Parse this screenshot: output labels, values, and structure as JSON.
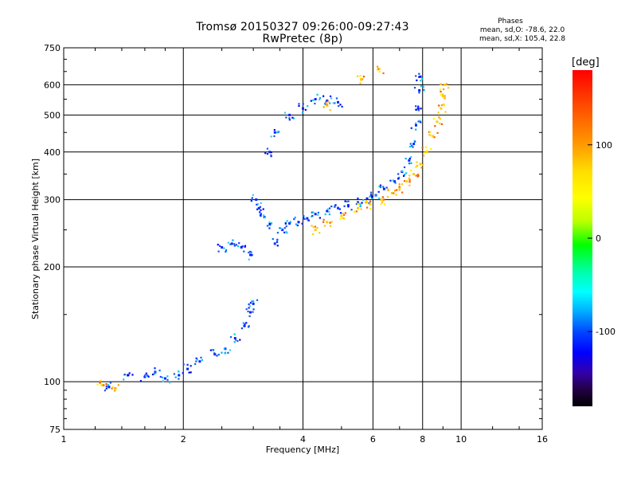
{
  "title": {
    "line1": "Tromsø 20150327 09:26:00-09:27:43",
    "line2": "RwPretec (8p)"
  },
  "phases": {
    "heading": "Phases",
    "line_o": "mean, sd,O: -78.6, 22.0",
    "line_x": "mean, sd,X: 105.4, 22.8"
  },
  "chart_data": {
    "type": "scatter",
    "xlabel": "Frequency [MHz]",
    "ylabel": "Stationary phase Virtual Height [km]",
    "x_scale": "log",
    "y_scale": "log",
    "xlim": [
      1,
      16
    ],
    "ylim": [
      75,
      750
    ],
    "x_ticks": [
      1,
      2,
      4,
      6,
      8,
      10,
      16
    ],
    "x_tick_labels": [
      "1",
      "2",
      "4",
      "6",
      "8",
      "10",
      "16"
    ],
    "y_ticks": [
      75,
      100,
      200,
      300,
      400,
      500,
      600,
      750
    ],
    "y_tick_labels": [
      "75",
      "100",
      "200",
      "300",
      "400",
      "500",
      "600",
      "750"
    ],
    "grid": true,
    "colorbar": {
      "label": "[deg]",
      "range": [
        -180,
        180
      ],
      "ticks": [
        100,
        0,
        -100
      ],
      "tick_labels": [
        "100",
        "0",
        "-100"
      ]
    },
    "series": [
      {
        "name": "O",
        "color_value": -78.6,
        "points": [
          [
            1.3,
            97
          ],
          [
            1.45,
            104
          ],
          [
            1.6,
            103
          ],
          [
            1.7,
            106
          ],
          [
            1.8,
            102
          ],
          [
            1.95,
            104
          ],
          [
            2.05,
            108
          ],
          [
            2.2,
            113
          ],
          [
            2.4,
            118
          ],
          [
            2.55,
            122
          ],
          [
            2.7,
            130
          ],
          [
            2.85,
            140
          ],
          [
            2.95,
            152
          ],
          [
            3.0,
            160
          ],
          [
            2.5,
            225
          ],
          [
            2.65,
            230
          ],
          [
            2.8,
            225
          ],
          [
            2.95,
            215
          ],
          [
            3.05,
            300
          ],
          [
            3.1,
            285
          ],
          [
            3.2,
            270
          ],
          [
            3.3,
            258
          ],
          [
            3.4,
            230
          ],
          [
            3.55,
            250
          ],
          [
            3.7,
            260
          ],
          [
            3.9,
            262
          ],
          [
            4.1,
            268
          ],
          [
            4.3,
            275
          ],
          [
            4.6,
            280
          ],
          [
            4.9,
            285
          ],
          [
            5.2,
            290
          ],
          [
            5.5,
            295
          ],
          [
            5.8,
            302
          ],
          [
            6.1,
            308
          ],
          [
            6.4,
            320
          ],
          [
            6.8,
            335
          ],
          [
            7.1,
            355
          ],
          [
            7.4,
            380
          ],
          [
            7.6,
            420
          ],
          [
            7.7,
            470
          ],
          [
            7.8,
            520
          ],
          [
            7.85,
            580
          ],
          [
            7.9,
            630
          ],
          [
            3.3,
            400
          ],
          [
            3.4,
            450
          ],
          [
            3.7,
            500
          ],
          [
            4.0,
            520
          ],
          [
            4.3,
            550
          ],
          [
            4.6,
            545
          ],
          [
            4.9,
            540
          ]
        ]
      },
      {
        "name": "X",
        "color_value": 105.4,
        "points": [
          [
            4.3,
            250
          ],
          [
            4.6,
            262
          ],
          [
            5.0,
            272
          ],
          [
            5.5,
            285
          ],
          [
            5.9,
            292
          ],
          [
            6.3,
            300
          ],
          [
            6.7,
            312
          ],
          [
            7.0,
            322
          ],
          [
            7.3,
            335
          ],
          [
            7.6,
            350
          ],
          [
            7.9,
            372
          ],
          [
            8.2,
            400
          ],
          [
            8.5,
            440
          ],
          [
            8.7,
            480
          ],
          [
            8.9,
            520
          ],
          [
            9.0,
            560
          ],
          [
            9.1,
            600
          ],
          [
            1.25,
            98
          ],
          [
            1.35,
            96
          ],
          [
            4.6,
            530
          ],
          [
            5.6,
            620
          ],
          [
            6.2,
            660
          ]
        ]
      }
    ]
  }
}
